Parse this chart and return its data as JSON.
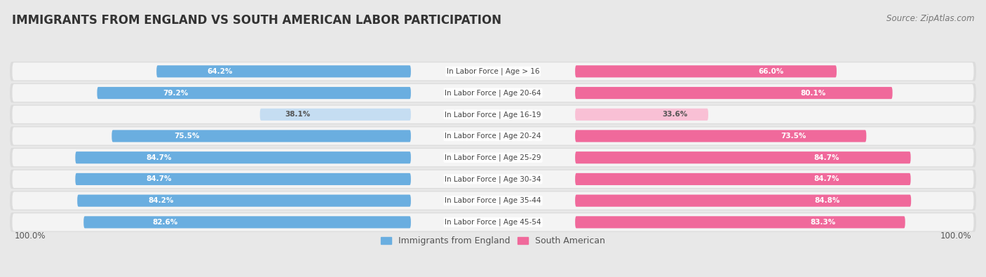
{
  "title": "IMMIGRANTS FROM ENGLAND VS SOUTH AMERICAN LABOR PARTICIPATION",
  "source": "Source: ZipAtlas.com",
  "categories": [
    "In Labor Force | Age > 16",
    "In Labor Force | Age 20-64",
    "In Labor Force | Age 16-19",
    "In Labor Force | Age 20-24",
    "In Labor Force | Age 25-29",
    "In Labor Force | Age 30-34",
    "In Labor Force | Age 35-44",
    "In Labor Force | Age 45-54"
  ],
  "england_values": [
    64.2,
    79.2,
    38.1,
    75.5,
    84.7,
    84.7,
    84.2,
    82.6
  ],
  "south_american_values": [
    66.0,
    80.1,
    33.6,
    73.5,
    84.7,
    84.7,
    84.8,
    83.3
  ],
  "england_color": "#6aaee0",
  "england_light_color": "#c5ddf2",
  "south_american_color": "#f0699b",
  "south_american_light_color": "#f9c0d5",
  "page_bg_color": "#e8e8e8",
  "row_bg_color": "#dcdcdc",
  "bar_bg_color": "#f4f4f4",
  "title_fontsize": 12,
  "source_fontsize": 8.5,
  "label_fontsize": 7.5,
  "value_fontsize": 7.5,
  "legend_fontsize": 9,
  "max_value": 100.0
}
